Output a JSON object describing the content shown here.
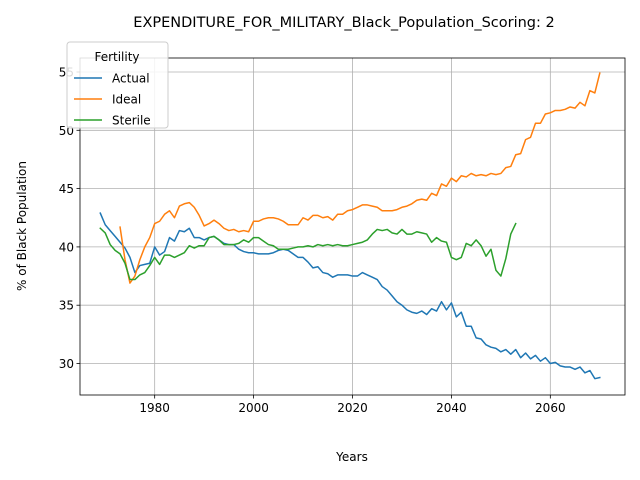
{
  "chart_data": {
    "type": "line",
    "title": "EXPENDITURE_FOR_MILITARY_Black_Population_Scoring: 2",
    "xlabel": "Years",
    "ylabel": "% of Black Population",
    "xlim": [
      1964.9,
      2075.1
    ],
    "ylim": [
      27.3,
      56.2
    ],
    "xticks": [
      1980,
      2000,
      2020,
      2040,
      2060
    ],
    "yticks": [
      30,
      35,
      40,
      45,
      50,
      55
    ],
    "grid": true,
    "legend": {
      "title": "Fertility",
      "position": "top-left"
    },
    "series": [
      {
        "name": "Actual",
        "color": "#1f77b4",
        "x": [
          1969,
          1970,
          1971,
          1972,
          1973,
          1974,
          1975,
          1976,
          1977,
          1978,
          1979,
          1980,
          1981,
          1982,
          1983,
          1984,
          1985,
          1986,
          1987,
          1988,
          1989,
          1990,
          1991,
          1992,
          1993,
          1994,
          1995,
          1996,
          1997,
          1998,
          1999,
          2000,
          2001,
          2002,
          2003,
          2004,
          2005,
          2006,
          2007,
          2008,
          2009,
          2010,
          2011,
          2012,
          2013,
          2014,
          2015,
          2016,
          2017,
          2018,
          2019,
          2020,
          2021,
          2022,
          2023,
          2024,
          2025,
          2026,
          2027,
          2028,
          2029,
          2030,
          2031,
          2032,
          2033,
          2034,
          2035,
          2036,
          2037,
          2038,
          2039,
          2040,
          2041,
          2042,
          2043,
          2044,
          2045,
          2046,
          2047,
          2048,
          2049,
          2050,
          2051,
          2052,
          2053,
          2054,
          2055,
          2056,
          2057,
          2058,
          2059,
          2060,
          2061,
          2062,
          2063,
          2064,
          2065,
          2066,
          2067,
          2068,
          2069,
          2070
        ],
        "y": [
          42.9,
          41.9,
          41.4,
          40.9,
          40.4,
          39.9,
          39.1,
          37.8,
          38.4,
          38.5,
          38.6,
          40.0,
          39.3,
          39.6,
          40.8,
          40.5,
          41.4,
          41.3,
          41.6,
          40.8,
          40.8,
          40.6,
          40.8,
          40.9,
          40.6,
          40.3,
          40.2,
          40.2,
          39.8,
          39.6,
          39.5,
          39.5,
          39.4,
          39.4,
          39.4,
          39.5,
          39.7,
          39.8,
          39.7,
          39.4,
          39.1,
          39.1,
          38.7,
          38.2,
          38.3,
          37.8,
          37.7,
          37.4,
          37.6,
          37.6,
          37.6,
          37.5,
          37.5,
          37.8,
          37.6,
          37.4,
          37.2,
          36.6,
          36.3,
          35.8,
          35.3,
          35.0,
          34.6,
          34.4,
          34.3,
          34.5,
          34.2,
          34.7,
          34.5,
          35.3,
          34.6,
          35.2,
          34.0,
          34.4,
          33.2,
          33.2,
          32.2,
          32.1,
          31.6,
          31.4,
          31.3,
          31.0,
          31.2,
          30.8,
          31.2,
          30.5,
          30.9,
          30.4,
          30.7,
          30.2,
          30.5,
          30.0,
          30.1,
          29.8,
          29.7,
          29.7,
          29.5,
          29.7,
          29.2,
          29.4,
          28.7,
          28.8
        ]
      },
      {
        "name": "Ideal",
        "color": "#ff7f0e",
        "x": [
          1973,
          1974,
          1975,
          1976,
          1977,
          1978,
          1979,
          1980,
          1981,
          1982,
          1983,
          1984,
          1985,
          1986,
          1987,
          1988,
          1989,
          1990,
          1991,
          1992,
          1993,
          1994,
          1995,
          1996,
          1997,
          1998,
          1999,
          2000,
          2001,
          2002,
          2003,
          2004,
          2005,
          2006,
          2007,
          2008,
          2009,
          2010,
          2011,
          2012,
          2013,
          2014,
          2015,
          2016,
          2017,
          2018,
          2019,
          2020,
          2021,
          2022,
          2023,
          2024,
          2025,
          2026,
          2027,
          2028,
          2029,
          2030,
          2031,
          2032,
          2033,
          2034,
          2035,
          2036,
          2037,
          2038,
          2039,
          2040,
          2041,
          2042,
          2043,
          2044,
          2045,
          2046,
          2047,
          2048,
          2049,
          2050,
          2051,
          2052,
          2053,
          2054,
          2055,
          2056,
          2057,
          2058,
          2059,
          2060,
          2061,
          2062,
          2063,
          2064,
          2065,
          2066,
          2067,
          2068,
          2069,
          2070
        ],
        "y": [
          41.7,
          38.9,
          36.9,
          37.5,
          38.9,
          40.0,
          40.8,
          42.0,
          42.2,
          42.8,
          43.1,
          42.5,
          43.5,
          43.7,
          43.8,
          43.4,
          42.7,
          41.8,
          42.0,
          42.3,
          42.0,
          41.6,
          41.4,
          41.5,
          41.3,
          41.4,
          41.3,
          42.2,
          42.2,
          42.4,
          42.5,
          42.5,
          42.4,
          42.2,
          41.9,
          41.9,
          41.9,
          42.5,
          42.3,
          42.7,
          42.7,
          42.5,
          42.6,
          42.3,
          42.8,
          42.8,
          43.1,
          43.2,
          43.4,
          43.6,
          43.6,
          43.5,
          43.4,
          43.1,
          43.1,
          43.1,
          43.2,
          43.4,
          43.5,
          43.7,
          44.0,
          44.1,
          44.0,
          44.6,
          44.4,
          45.4,
          45.2,
          45.9,
          45.6,
          46.1,
          46.0,
          46.3,
          46.1,
          46.2,
          46.1,
          46.3,
          46.2,
          46.3,
          46.8,
          46.9,
          47.9,
          48.0,
          49.2,
          49.4,
          50.6,
          50.6,
          51.4,
          51.5,
          51.7,
          51.7,
          51.8,
          52.0,
          51.9,
          52.4,
          52.1,
          53.4,
          53.2,
          54.9
        ]
      },
      {
        "name": "Sterile",
        "color": "#2ca02c",
        "x": [
          1969,
          1970,
          1971,
          1972,
          1973,
          1974,
          1975,
          1976,
          1977,
          1978,
          1979,
          1980,
          1981,
          1982,
          1983,
          1984,
          1985,
          1986,
          1987,
          1988,
          1989,
          1990,
          1991,
          1992,
          1993,
          1994,
          1995,
          1996,
          1997,
          1998,
          1999,
          2000,
          2001,
          2002,
          2003,
          2004,
          2005,
          2006,
          2007,
          2008,
          2009,
          2010,
          2011,
          2012,
          2013,
          2014,
          2015,
          2016,
          2017,
          2018,
          2019,
          2020,
          2021,
          2022,
          2023,
          2024,
          2025,
          2026,
          2027,
          2028,
          2029,
          2030,
          2031,
          2032,
          2033,
          2034,
          2035,
          2036,
          2037,
          2038,
          2039,
          2040,
          2041,
          2042,
          2043,
          2044,
          2045,
          2046,
          2047,
          2048,
          2049,
          2050,
          2051,
          2052,
          2053
        ],
        "y": [
          41.6,
          41.2,
          40.2,
          39.7,
          39.4,
          38.6,
          37.2,
          37.2,
          37.6,
          37.8,
          38.4,
          39.1,
          38.5,
          39.3,
          39.3,
          39.1,
          39.3,
          39.5,
          40.1,
          39.9,
          40.1,
          40.1,
          40.8,
          40.9,
          40.6,
          40.2,
          40.2,
          40.2,
          40.3,
          40.6,
          40.4,
          40.8,
          40.8,
          40.5,
          40.2,
          40.1,
          39.8,
          39.8,
          39.8,
          39.9,
          40.0,
          40.0,
          40.1,
          40.0,
          40.2,
          40.1,
          40.2,
          40.1,
          40.2,
          40.1,
          40.1,
          40.2,
          40.3,
          40.4,
          40.6,
          41.1,
          41.5,
          41.4,
          41.5,
          41.2,
          41.1,
          41.5,
          41.1,
          41.1,
          41.3,
          41.2,
          41.1,
          40.4,
          40.8,
          40.5,
          40.4,
          39.1,
          38.9,
          39.1,
          40.3,
          40.1,
          40.6,
          40.1,
          39.2,
          39.8,
          38.0,
          37.5,
          39.0,
          41.1,
          42.0
        ]
      }
    ]
  }
}
